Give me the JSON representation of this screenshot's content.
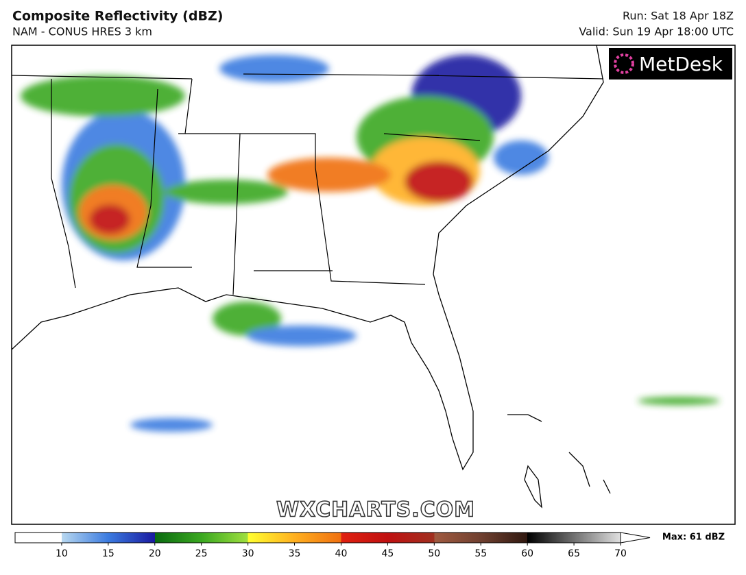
{
  "header": {
    "title": "Composite Reflectivity (dBZ)",
    "subtitle": "NAM - CONUS HRES 3 km",
    "run": "Run: Sat 18 Apr 18Z",
    "valid": "Valid: Sun 19 Apr 18:00 UTC"
  },
  "logo": "MetDesk",
  "watermark": "WXCHARTS.COM",
  "colorbar": {
    "lim": [
      5,
      70
    ],
    "ticks": [
      10,
      15,
      20,
      25,
      30,
      35,
      40,
      45,
      50,
      55,
      60,
      65,
      70
    ],
    "stops": [
      {
        "value": 5,
        "color": "#ffffff"
      },
      {
        "value": 10,
        "color": "#ffffff"
      },
      {
        "value": 10,
        "color": "#b8d8f0"
      },
      {
        "value": 15,
        "color": "#3b7be0"
      },
      {
        "value": 20,
        "color": "#1a1aa0"
      },
      {
        "value": 20,
        "color": "#0a6a10"
      },
      {
        "value": 25,
        "color": "#3aa820"
      },
      {
        "value": 30,
        "color": "#a0e040"
      },
      {
        "value": 30,
        "color": "#ffff30"
      },
      {
        "value": 35,
        "color": "#ffb020"
      },
      {
        "value": 40,
        "color": "#f07010"
      },
      {
        "value": 40,
        "color": "#e02010"
      },
      {
        "value": 45,
        "color": "#c01010"
      },
      {
        "value": 50,
        "color": "#a03020"
      },
      {
        "value": 50,
        "color": "#a05a40"
      },
      {
        "value": 55,
        "color": "#704030"
      },
      {
        "value": 60,
        "color": "#301810"
      },
      {
        "value": 60,
        "color": "#000000"
      },
      {
        "value": 65,
        "color": "#707070"
      },
      {
        "value": 70,
        "color": "#e0e0e0"
      }
    ],
    "max_label": "Max: 61 dBZ"
  }
}
